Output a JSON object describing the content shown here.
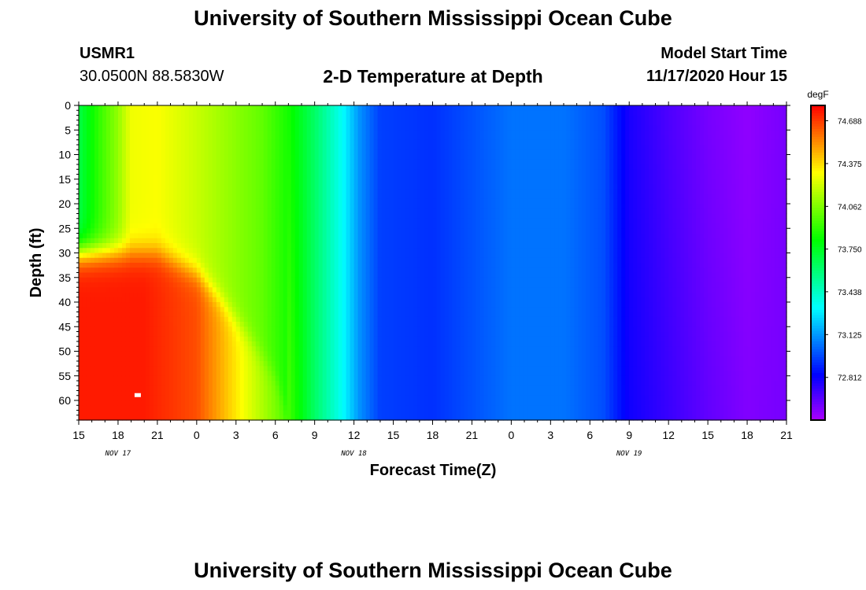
{
  "page": {
    "title_top": "University of Southern Mississippi Ocean Cube",
    "title_bottom": "University of Southern Mississippi Ocean Cube",
    "station": "USMR1",
    "coords": "30.0500N 88.5830W",
    "model_start_label": "Model Start Time",
    "model_start_value": "11/17/2020 Hour 15"
  },
  "chart_data": {
    "type": "heatmap",
    "title": "2-D Temperature at Depth",
    "xlabel": "Forecast Time(Z)",
    "ylabel": "Depth (ft)",
    "x_ticks": [
      "15",
      "18",
      "21",
      "0",
      "3",
      "6",
      "9",
      "12",
      "15",
      "18",
      "21",
      "0",
      "3",
      "6",
      "9",
      "12",
      "15",
      "18",
      "21"
    ],
    "date_labels": [
      {
        "text": "NOV 17",
        "tick_index": 1
      },
      {
        "text": "NOV 18",
        "tick_index": 7
      },
      {
        "text": "NOV 19",
        "tick_index": 14
      }
    ],
    "y_ticks": [
      0,
      5,
      10,
      15,
      20,
      25,
      30,
      35,
      40,
      45,
      50,
      55,
      60
    ],
    "ylim": [
      0,
      64
    ],
    "x_hours_range": [
      0,
      54
    ],
    "colorbar": {
      "unit": "degF",
      "range": [
        72.5,
        74.8
      ],
      "ticks": [
        "74.688",
        "74.375",
        "74.062",
        "73.750",
        "73.438",
        "73.125",
        "72.812"
      ],
      "tick_values": [
        74.688,
        74.375,
        74.062,
        73.75,
        73.438,
        73.125,
        72.812
      ]
    },
    "surface_temperature_profile": [
      {
        "hour": 0,
        "value": 73.68
      },
      {
        "hour": 1.5,
        "value": 73.9
      },
      {
        "hour": 3,
        "value": 74.1
      },
      {
        "hour": 4,
        "value": 74.28
      },
      {
        "hour": 6,
        "value": 74.3
      },
      {
        "hour": 9,
        "value": 74.2
      },
      {
        "hour": 12,
        "value": 74.08
      },
      {
        "hour": 14,
        "value": 74.0
      },
      {
        "hour": 16,
        "value": 73.85
      },
      {
        "hour": 18,
        "value": 73.62
      },
      {
        "hour": 20,
        "value": 73.35
      },
      {
        "hour": 21.5,
        "value": 73.1
      },
      {
        "hour": 23,
        "value": 72.95
      },
      {
        "hour": 27,
        "value": 72.92
      },
      {
        "hour": 33,
        "value": 73.05
      },
      {
        "hour": 37,
        "value": 73.05
      },
      {
        "hour": 40,
        "value": 72.98
      },
      {
        "hour": 42,
        "value": 72.78
      },
      {
        "hour": 45,
        "value": 72.68
      },
      {
        "hour": 48,
        "value": 72.6
      },
      {
        "hour": 51,
        "value": 72.55
      },
      {
        "hour": 54,
        "value": 72.6
      }
    ],
    "bottom_temperature_profile": [
      {
        "hour": 0,
        "value": 74.75
      },
      {
        "hour": 5,
        "value": 74.75
      },
      {
        "hour": 9,
        "value": 74.65
      },
      {
        "hour": 11,
        "value": 74.45
      },
      {
        "hour": 13,
        "value": 74.25
      },
      {
        "hour": 16,
        "value": 73.95
      },
      {
        "hour": 18,
        "value": 73.62
      },
      {
        "hour": 20,
        "value": 73.35
      },
      {
        "hour": 21.5,
        "value": 73.1
      },
      {
        "hour": 23,
        "value": 72.95
      },
      {
        "hour": 27,
        "value": 72.92
      },
      {
        "hour": 33,
        "value": 73.05
      },
      {
        "hour": 37,
        "value": 73.05
      },
      {
        "hour": 40,
        "value": 72.98
      },
      {
        "hour": 42,
        "value": 72.8
      },
      {
        "hour": 45,
        "value": 72.72
      },
      {
        "hour": 48,
        "value": 72.64
      },
      {
        "hour": 51,
        "value": 72.58
      },
      {
        "hour": 54,
        "value": 72.6
      }
    ],
    "warm_layer_top_depth": [
      {
        "hour": 0,
        "depth": 30
      },
      {
        "hour": 6,
        "depth": 30
      },
      {
        "hour": 9,
        "depth": 34
      },
      {
        "hour": 11,
        "depth": 40
      },
      {
        "hour": 13,
        "depth": 47
      },
      {
        "hour": 15,
        "depth": 55
      },
      {
        "hour": 16,
        "depth": 64
      }
    ],
    "marker": {
      "hour": 4.5,
      "depth": 59
    }
  },
  "colors": {
    "background": "#ffffff",
    "marker": "#ffffff"
  }
}
